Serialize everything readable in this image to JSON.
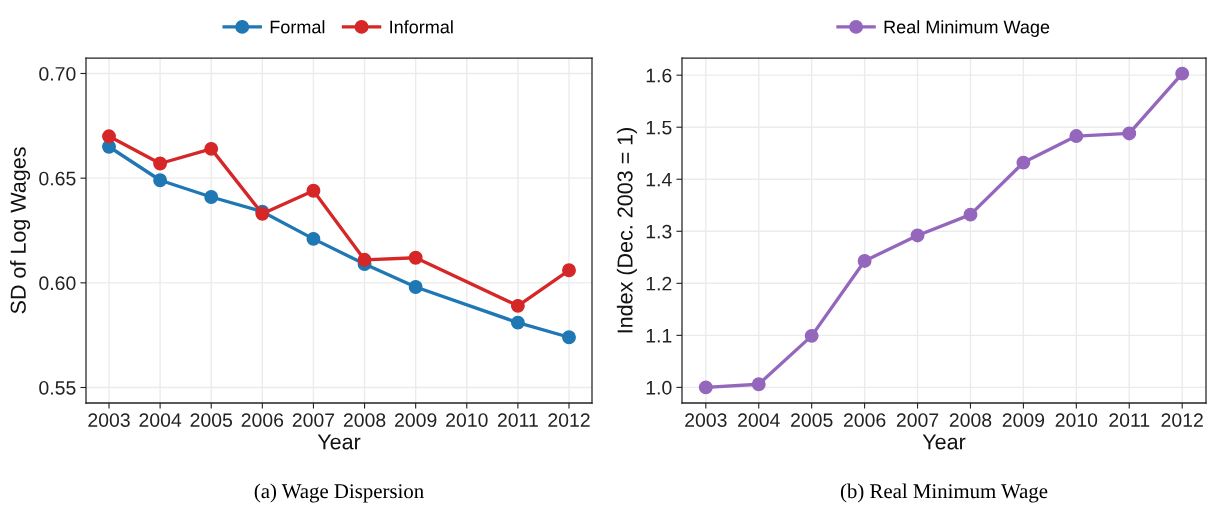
{
  "chart_data": [
    {
      "type": "line",
      "x": [
        2003,
        2004,
        2005,
        2006,
        2007,
        2008,
        2009,
        2011,
        2012
      ],
      "series": [
        {
          "name": "Formal",
          "color": "#1f78b4",
          "values": [
            0.665,
            0.649,
            0.641,
            0.634,
            0.621,
            0.609,
            0.598,
            0.581,
            0.574
          ]
        },
        {
          "name": "Informal",
          "color": "#d62728",
          "values": [
            0.67,
            0.657,
            0.664,
            0.633,
            0.644,
            0.611,
            0.612,
            0.589,
            0.606
          ]
        }
      ],
      "xlabel": "Year",
      "ylabel": "SD of Log Wages",
      "xlim": [
        2002.55,
        2012.45
      ],
      "xticks": [
        2003,
        2004,
        2005,
        2006,
        2007,
        2008,
        2009,
        2010,
        2011,
        2012
      ],
      "ylim": [
        0.5426,
        0.7074
      ],
      "yticks": [
        {
          "value": 0.55,
          "label": "0.55"
        },
        {
          "value": 0.6,
          "label": "0.60"
        },
        {
          "value": 0.65,
          "label": "0.65"
        },
        {
          "value": 0.7,
          "label": "0.70"
        }
      ],
      "marker": "circle",
      "line_style": "solid",
      "grid": true,
      "legend": "top",
      "annotations": [
        "(a) Wage Dispersion"
      ]
    },
    {
      "type": "line",
      "x": [
        2003,
        2004,
        2005,
        2006,
        2007,
        2008,
        2009,
        2010,
        2011,
        2012
      ],
      "series": [
        {
          "name": "Real Minimum Wage",
          "color": "#9467bd",
          "values": [
            1.0,
            1.006,
            1.099,
            1.243,
            1.292,
            1.332,
            1.432,
            1.483,
            1.488,
            1.603
          ]
        }
      ],
      "xlabel": "Year",
      "ylabel": "Index (Dec. 2003 = 1)",
      "xlim": [
        2002.55,
        2012.45
      ],
      "xticks": [
        2003,
        2004,
        2005,
        2006,
        2007,
        2008,
        2009,
        2010,
        2011,
        2012
      ],
      "ylim": [
        0.97,
        1.633
      ],
      "yticks": [
        {
          "value": 1,
          "label": "1.0"
        },
        {
          "value": 1.1,
          "label": "1.1"
        },
        {
          "value": 1.2,
          "label": "1.2"
        },
        {
          "value": 1.3,
          "label": "1.3"
        },
        {
          "value": 1.4,
          "label": "1.4"
        },
        {
          "value": 1.5,
          "label": "1.5"
        },
        {
          "value": 1.6,
          "label": "1.6"
        }
      ],
      "marker": "circle",
      "line_style": "solid",
      "grid": true,
      "legend": "top",
      "annotations": [
        "(b) Real Minimum Wage"
      ]
    }
  ]
}
